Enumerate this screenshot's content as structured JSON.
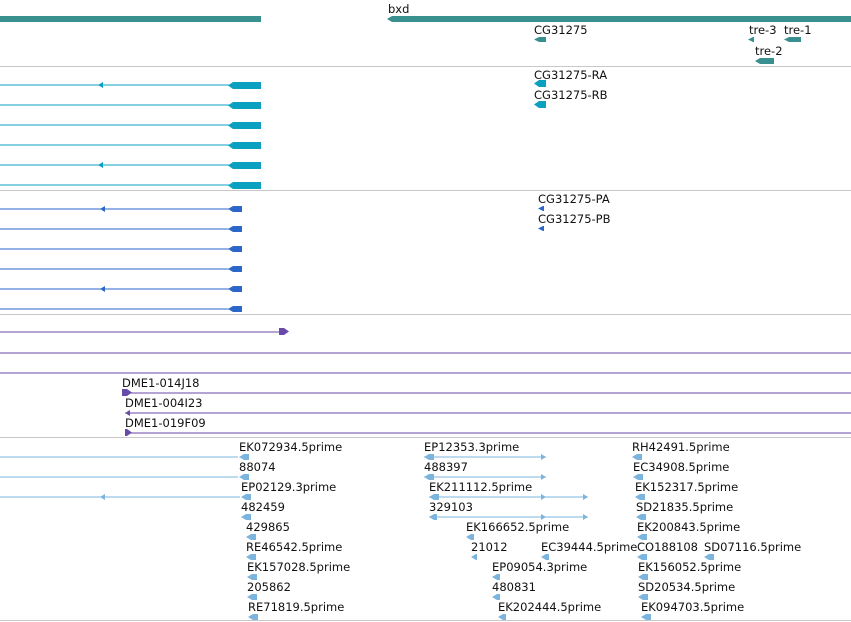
{
  "colors": {
    "gene": "#3a8f8f",
    "transcript": "#0aa0c0",
    "protein": "#2b66c8",
    "clone": "#6a4aa8",
    "est": "#7bb4dd",
    "separator": "#c8c8c8"
  },
  "tracks": {
    "genes": {
      "labels": [
        "bxd",
        "CG31275",
        "tre-3",
        "tre-1",
        "tre-2"
      ]
    },
    "transcripts": {
      "labels": [
        "CG31275-RA",
        "CG31275-RB"
      ]
    },
    "proteins": {
      "labels": [
        "CG31275-PA",
        "CG31275-PB"
      ]
    },
    "clones": {
      "labels": [
        "DME1-014J18",
        "DME1-004I23",
        "DME1-019F09"
      ]
    },
    "ests": {
      "labels": [
        "EK072934.5prime",
        "88074",
        "EP02129.3prime",
        "482459",
        "429865",
        "RE46542.5prime",
        "EK157028.5prime",
        "205862",
        "RE71819.5prime",
        "EP12353.3prime",
        "488397",
        "EK211112.5prime",
        "329103",
        "EK166652.5prime",
        "21012",
        "EC39444.5prime",
        "EP09054.3prime",
        "480831",
        "EK202444.5prime",
        "RH42491.5prime",
        "EC34908.5prime",
        "EK152317.5prime",
        "SD21835.5prime",
        "EK200843.5prime",
        "CO188108",
        "SD07116.5prime",
        "EK156052.5prime",
        "SD20534.5prime",
        "EK094703.5prime"
      ]
    }
  }
}
